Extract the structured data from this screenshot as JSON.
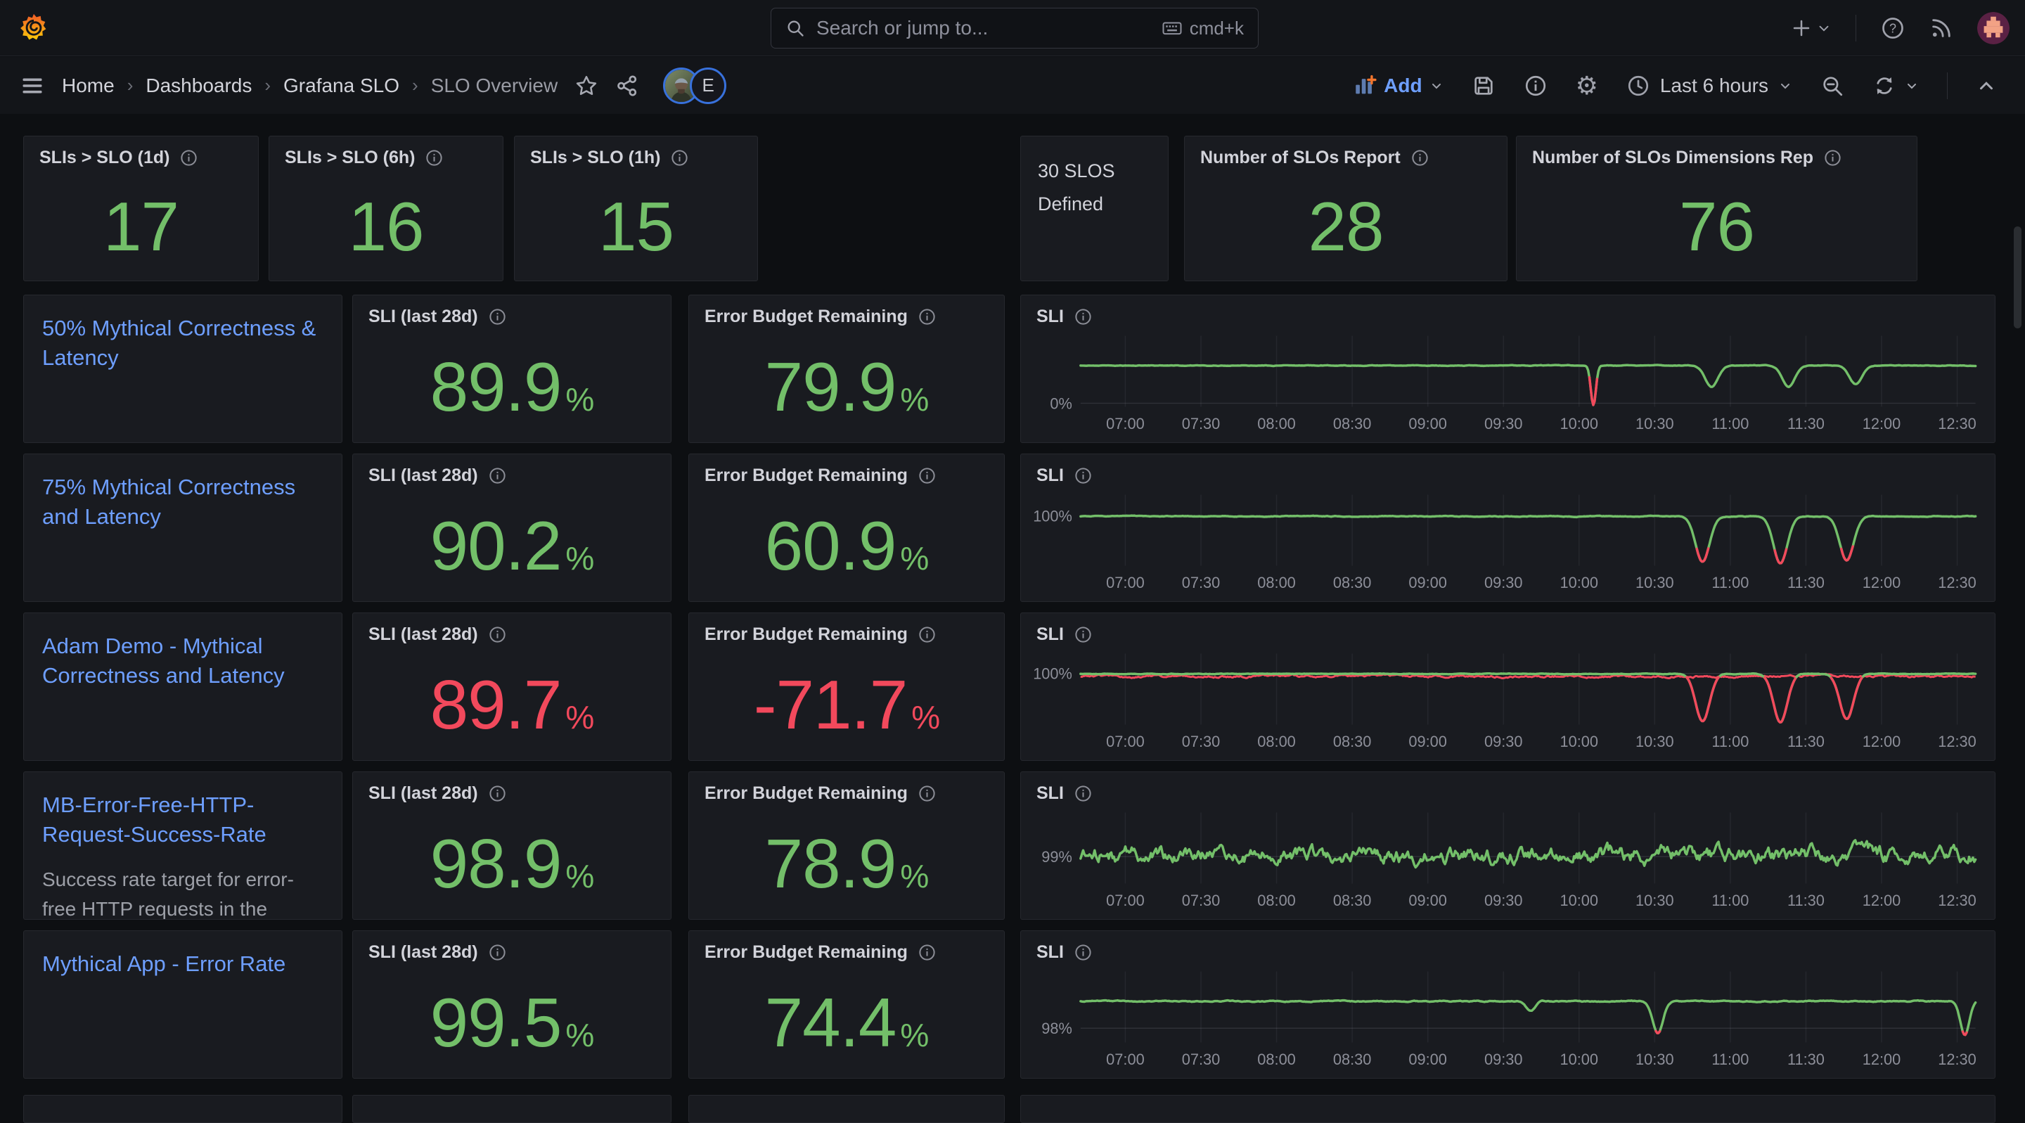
{
  "topbar": {
    "search_placeholder": "Search or jump to...",
    "search_shortcut": "cmd+k"
  },
  "breadcrumb": {
    "items": [
      "Home",
      "Dashboards",
      "Grafana SLO",
      "SLO Overview"
    ],
    "separator": "›"
  },
  "toolbar": {
    "add_label": "Add",
    "time_range": "Last 6 hours",
    "viewer_badge": "E"
  },
  "labels": {
    "sli_panel": "SLI (last 28d)",
    "ebr_panel": "Error Budget Remaining",
    "chart_panel": "SLI",
    "percent": "%"
  },
  "colors": {
    "green": "#73BF69",
    "red": "#F2495C",
    "link": "#6E9FFF"
  },
  "stats": [
    {
      "title": "SLIs > SLO (1d)",
      "value": "17"
    },
    {
      "title": "SLIs > SLO (6h)",
      "value": "16"
    },
    {
      "title": "SLIs > SLO (1h)",
      "value": "15"
    },
    {
      "text": "30 SLOS Defined"
    },
    {
      "title": "Number of SLOs Report",
      "value": "28"
    },
    {
      "title": "Number of SLOs Dimensions Rep",
      "value": "76"
    }
  ],
  "slo_rows": [
    {
      "name": "50% Mythical Correctness & Latency",
      "description": "",
      "sli": "89.9",
      "ebr": "79.9",
      "value_color": "#73BF69",
      "chart_index": 0
    },
    {
      "name": "75% Mythical Correctness and Latency",
      "description": "",
      "sli": "90.2",
      "ebr": "60.9",
      "value_color": "#73BF69",
      "chart_index": 1
    },
    {
      "name": "Adam Demo - Mythical Correctness and Latency",
      "description": "",
      "sli": "89.7",
      "ebr": "-71.7",
      "value_color": "#F2495C",
      "chart_index": 2
    },
    {
      "name": "MB-Error-Free-HTTP-Request-Success-Rate",
      "description": "Success rate target for error-free HTTP requests in the",
      "sli": "98.9",
      "ebr": "78.9",
      "value_color": "#73BF69",
      "chart_index": 3
    },
    {
      "name": "Mythical App - Error Rate",
      "description": "",
      "sli": "99.5",
      "ebr": "74.4",
      "value_color": "#73BF69",
      "chart_index": 4
    }
  ],
  "chart_ticks": [
    "07:00",
    "07:30",
    "08:00",
    "08:30",
    "09:00",
    "09:30",
    "10:00",
    "10:30",
    "11:00",
    "11:30",
    "12:00",
    "12:30"
  ],
  "chart_data": [
    {
      "type": "line",
      "title": "SLI",
      "ylabel": "0%",
      "ylabel_frac": 0.95,
      "grid_frac": 0.95,
      "baseline_frac": 0.42,
      "noise": 0.012,
      "seed": 11,
      "dips": [
        {
          "t": "10:06",
          "x": 0.573,
          "d": 0.56,
          "w": 0.004
        },
        {
          "t": "10:52",
          "x": 0.705,
          "d": 0.3,
          "w": 0.01
        },
        {
          "t": "11:23",
          "x": 0.791,
          "d": 0.3,
          "w": 0.01
        },
        {
          "t": "11:50",
          "x": 0.866,
          "d": 0.26,
          "w": 0.01
        }
      ],
      "red_zones": [
        [
          0.565,
          0.582,
          0.55
        ]
      ]
    },
    {
      "type": "line",
      "title": "SLI",
      "ylabel": "100%",
      "ylabel_frac": 0.3,
      "grid_frac": 0.3,
      "baseline_frac": 0.305,
      "noise": 0.015,
      "seed": 22,
      "dips": [
        {
          "t": "10:49",
          "x": 0.695,
          "d": 0.64,
          "w": 0.011
        },
        {
          "t": "11:20",
          "x": 0.782,
          "d": 0.66,
          "w": 0.011
        },
        {
          "t": "11:46",
          "x": 0.856,
          "d": 0.62,
          "w": 0.011
        }
      ],
      "red_zones": [
        [
          0.675,
          0.715,
          0.72
        ],
        [
          0.762,
          0.802,
          0.72
        ],
        [
          0.836,
          0.876,
          0.72
        ]
      ]
    },
    {
      "type": "line",
      "title": "SLI",
      "ylabel": "100%",
      "ylabel_frac": 0.28,
      "grid_frac": 0.28,
      "baseline_frac": 0.285,
      "noise": 0.012,
      "seed": 33,
      "red_under": {
        "offset": 0.034,
        "noise": 0.045,
        "seed": 34
      },
      "dips": [
        {
          "t": "10:49",
          "x": 0.695,
          "d": 0.67,
          "w": 0.011
        },
        {
          "t": "11:20",
          "x": 0.782,
          "d": 0.68,
          "w": 0.011
        },
        {
          "t": "11:46",
          "x": 0.856,
          "d": 0.64,
          "w": 0.011
        }
      ],
      "red_zones": [
        [
          0.672,
          0.718,
          0.33
        ],
        [
          0.759,
          0.805,
          0.33
        ],
        [
          0.833,
          0.879,
          0.33
        ]
      ]
    },
    {
      "type": "line",
      "title": "SLI",
      "ylabel": "99%",
      "ylabel_frac": 0.62,
      "grid_frac": 0.62,
      "baseline_frac": 0.6,
      "noise": 0.32,
      "seed": 44,
      "dips": [],
      "red_zones": []
    },
    {
      "type": "line",
      "title": "SLI",
      "ylabel": "98%",
      "ylabel_frac": 0.8,
      "grid_frac": 0.8,
      "baseline_frac": 0.42,
      "noise": 0.022,
      "seed": 55,
      "dips": [
        {
          "t": "09:41",
          "x": 0.503,
          "d": 0.14,
          "w": 0.007
        },
        {
          "t": "10:31",
          "x": 0.645,
          "d": 0.45,
          "w": 0.008
        },
        {
          "t": "12:33",
          "x": 0.988,
          "d": 0.47,
          "w": 0.007
        }
      ],
      "red_zones": [
        [
          0.636,
          0.654,
          0.8
        ],
        [
          0.979,
          1.0,
          0.8
        ]
      ]
    }
  ]
}
